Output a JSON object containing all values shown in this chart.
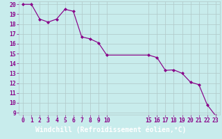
{
  "x": [
    0,
    1,
    2,
    3,
    4,
    5,
    6,
    7,
    8,
    9,
    10,
    15,
    16,
    17,
    18,
    19,
    20,
    21,
    22,
    23
  ],
  "y": [
    20.0,
    20.0,
    18.5,
    18.2,
    18.5,
    19.5,
    19.3,
    16.7,
    16.5,
    16.1,
    14.85,
    14.85,
    14.6,
    13.3,
    13.35,
    13.0,
    12.1,
    11.85,
    9.8,
    8.7
  ],
  "xlim": [
    -0.5,
    23.5
  ],
  "ylim": [
    8.8,
    20.3
  ],
  "xtick_positions": [
    0,
    1,
    2,
    3,
    4,
    5,
    6,
    7,
    8,
    9,
    10,
    15,
    16,
    17,
    18,
    19,
    20,
    21,
    22,
    23
  ],
  "xtick_labels": [
    "0",
    "1",
    "2",
    "3",
    "4",
    "5",
    "6",
    "7",
    "8",
    "9",
    "10",
    "15",
    "16",
    "17",
    "18",
    "19",
    "20",
    "21",
    "22",
    "23"
  ],
  "ytick_positions": [
    9,
    10,
    11,
    12,
    13,
    14,
    15,
    16,
    17,
    18,
    19,
    20
  ],
  "ytick_labels": [
    "9",
    "10",
    "11",
    "12",
    "13",
    "14",
    "15",
    "16",
    "17",
    "18",
    "19",
    "20"
  ],
  "xlabel": "Windchill (Refroidissement éolien,°C)",
  "line_color": "#880088",
  "marker": "D",
  "marker_size": 2.0,
  "bg_color": "#c8ecec",
  "grid_color": "#b0c8c8",
  "font_color": "#880088",
  "tick_fontsize": 5.8,
  "xlabel_fontsize": 7.0,
  "xlabel_bg": "#8800aa",
  "xlabel_text_color": "#ffffff"
}
